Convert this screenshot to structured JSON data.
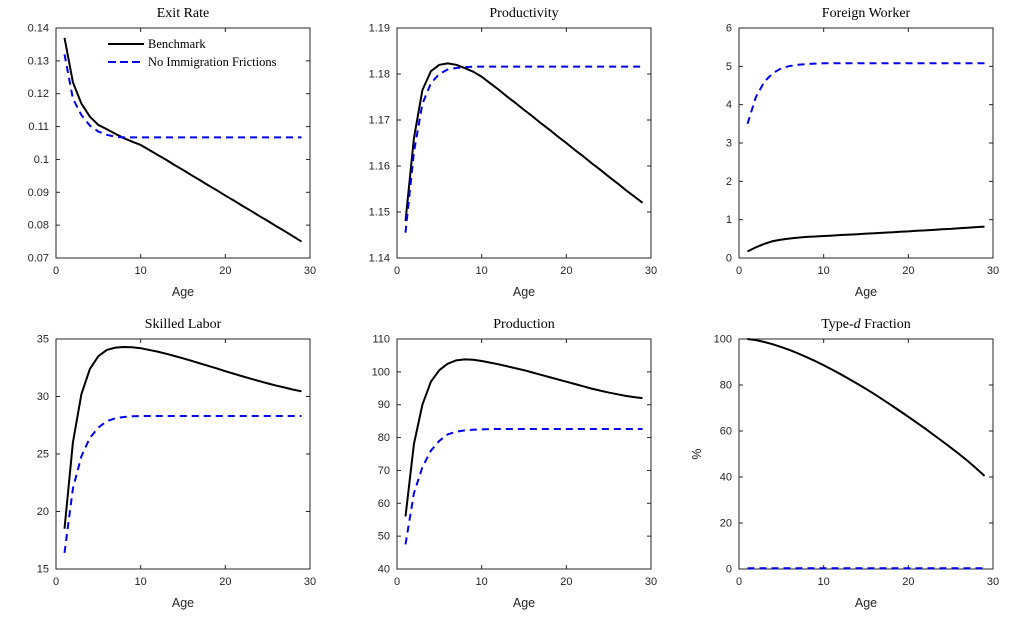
{
  "figure": {
    "background": "#ffffff",
    "axis_color": "#262626",
    "benchmark_color": "#000000",
    "no_frictions_color": "#0000ee"
  },
  "legend": {
    "items": [
      "Benchmark",
      "No Immigration Frictions"
    ]
  },
  "chart_data": [
    {
      "type": "line",
      "title": "Exit Rate",
      "title_segments": [
        {
          "t": "Exit Rate"
        }
      ],
      "xlabel": "Age",
      "ylabel": "",
      "xlim": [
        0,
        30
      ],
      "ylim": [
        0.07,
        0.14
      ],
      "xticks": [
        0,
        10,
        20,
        30
      ],
      "ytick_values": [
        0.07,
        0.08,
        0.09,
        0.1,
        0.11,
        0.12,
        0.13,
        0.14
      ],
      "ytick_labels": [
        "0.07",
        "0.08",
        "0.09",
        "0.1",
        "0.11",
        "0.12",
        "0.13",
        "0.14"
      ],
      "legend": true,
      "grid": false,
      "x": [
        1,
        2,
        3,
        4,
        5,
        6,
        7,
        8,
        9,
        10,
        11,
        12,
        13,
        14,
        15,
        16,
        17,
        18,
        19,
        20,
        21,
        22,
        23,
        24,
        25,
        26,
        27,
        28,
        29
      ],
      "series": [
        {
          "name": "Benchmark",
          "color": "#000000",
          "dashed": false,
          "values": [
            0.137,
            0.1235,
            0.117,
            0.113,
            0.1105,
            0.1092,
            0.1078,
            0.1065,
            0.1054,
            0.1044,
            0.1029,
            0.1014,
            0.0999,
            0.0983,
            0.0968,
            0.0952,
            0.0937,
            0.0921,
            0.0906,
            0.089,
            0.0875,
            0.0859,
            0.0844,
            0.0828,
            0.0813,
            0.0797,
            0.0782,
            0.0766,
            0.075
          ]
        },
        {
          "name": "No Immigration Frictions",
          "color": "#0000ee",
          "dashed": true,
          "values": [
            0.132,
            0.1185,
            0.1135,
            0.1103,
            0.1085,
            0.1075,
            0.1069,
            0.1067,
            0.1067,
            0.1067,
            0.1067,
            0.1067,
            0.1067,
            0.1067,
            0.1067,
            0.1067,
            0.1067,
            0.1067,
            0.1067,
            0.1067,
            0.1067,
            0.1067,
            0.1067,
            0.1067,
            0.1067,
            0.1067,
            0.1067,
            0.1067,
            0.1067
          ]
        }
      ]
    },
    {
      "type": "line",
      "title": "Productivity",
      "title_segments": [
        {
          "t": "Productivity"
        }
      ],
      "xlabel": "Age",
      "ylabel": "",
      "xlim": [
        0,
        30
      ],
      "ylim": [
        1.14,
        1.19
      ],
      "xticks": [
        0,
        10,
        20,
        30
      ],
      "ytick_values": [
        1.14,
        1.15,
        1.16,
        1.17,
        1.18,
        1.19
      ],
      "ytick_labels": [
        "1.14",
        "1.15",
        "1.16",
        "1.17",
        "1.18",
        "1.19"
      ],
      "legend": false,
      "grid": false,
      "x": [
        1,
        2,
        3,
        4,
        5,
        6,
        7,
        8,
        9,
        10,
        11,
        12,
        13,
        14,
        15,
        16,
        17,
        18,
        19,
        20,
        21,
        22,
        23,
        24,
        25,
        26,
        27,
        28,
        29
      ],
      "series": [
        {
          "name": "Benchmark",
          "color": "#000000",
          "dashed": false,
          "values": [
            1.148,
            1.166,
            1.1765,
            1.1806,
            1.182,
            1.1823,
            1.182,
            1.1813,
            1.1805,
            1.1794,
            1.178,
            1.1766,
            1.1751,
            1.1737,
            1.1722,
            1.1708,
            1.1693,
            1.1679,
            1.1664,
            1.165,
            1.1635,
            1.1621,
            1.1606,
            1.1592,
            1.1577,
            1.1563,
            1.1548,
            1.1534,
            1.152
          ]
        },
        {
          "name": "No Immigration Frictions",
          "color": "#0000ee",
          "dashed": true,
          "values": [
            1.1455,
            1.163,
            1.1735,
            1.178,
            1.18,
            1.181,
            1.1813,
            1.1815,
            1.1816,
            1.1816,
            1.1816,
            1.1816,
            1.1816,
            1.1816,
            1.1816,
            1.1816,
            1.1816,
            1.1816,
            1.1816,
            1.1816,
            1.1816,
            1.1816,
            1.1816,
            1.1816,
            1.1816,
            1.1816,
            1.1816,
            1.1816,
            1.1816
          ]
        }
      ]
    },
    {
      "type": "line",
      "title": "Foreign Worker",
      "title_segments": [
        {
          "t": "Foreign Worker"
        }
      ],
      "xlabel": "Age",
      "ylabel": "",
      "xlim": [
        0,
        30
      ],
      "ylim": [
        0,
        6
      ],
      "xticks": [
        0,
        10,
        20,
        30
      ],
      "ytick_values": [
        0,
        1,
        2,
        3,
        4,
        5,
        6
      ],
      "ytick_labels": [
        "0",
        "1",
        "2",
        "3",
        "4",
        "5",
        "6"
      ],
      "legend": false,
      "grid": false,
      "x": [
        1,
        2,
        3,
        4,
        5,
        6,
        7,
        8,
        9,
        10,
        11,
        12,
        13,
        14,
        15,
        16,
        17,
        18,
        19,
        20,
        21,
        22,
        23,
        24,
        25,
        26,
        27,
        28,
        29
      ],
      "series": [
        {
          "name": "Benchmark",
          "color": "#000000",
          "dashed": false,
          "values": [
            0.17,
            0.28,
            0.37,
            0.44,
            0.48,
            0.51,
            0.53,
            0.55,
            0.56,
            0.575,
            0.585,
            0.6,
            0.61,
            0.62,
            0.635,
            0.645,
            0.66,
            0.67,
            0.685,
            0.695,
            0.71,
            0.72,
            0.735,
            0.75,
            0.76,
            0.775,
            0.79,
            0.805,
            0.82
          ]
        },
        {
          "name": "No Immigration Frictions",
          "color": "#0000ee",
          "dashed": true,
          "values": [
            3.5,
            4.2,
            4.6,
            4.82,
            4.95,
            5.01,
            5.04,
            5.06,
            5.07,
            5.08,
            5.08,
            5.08,
            5.08,
            5.08,
            5.08,
            5.08,
            5.08,
            5.08,
            5.08,
            5.08,
            5.08,
            5.08,
            5.08,
            5.08,
            5.08,
            5.08,
            5.08,
            5.08,
            5.08
          ]
        }
      ]
    },
    {
      "type": "line",
      "title": "Skilled Labor",
      "title_segments": [
        {
          "t": "Skilled Labor"
        }
      ],
      "xlabel": "Age",
      "ylabel": "",
      "xlim": [
        0,
        30
      ],
      "ylim": [
        15,
        35
      ],
      "xticks": [
        0,
        10,
        20,
        30
      ],
      "ytick_values": [
        15,
        20,
        25,
        30,
        35
      ],
      "ytick_labels": [
        "15",
        "20",
        "25",
        "30",
        "35"
      ],
      "legend": false,
      "grid": false,
      "x": [
        1,
        2,
        3,
        4,
        5,
        6,
        7,
        8,
        9,
        10,
        11,
        12,
        13,
        14,
        15,
        16,
        17,
        18,
        19,
        20,
        21,
        22,
        23,
        24,
        25,
        26,
        27,
        28,
        29
      ],
      "series": [
        {
          "name": "Benchmark",
          "color": "#000000",
          "dashed": false,
          "values": [
            18.5,
            26,
            30.2,
            32.4,
            33.5,
            34.05,
            34.25,
            34.3,
            34.28,
            34.2,
            34.05,
            33.9,
            33.72,
            33.52,
            33.32,
            33.1,
            32.88,
            32.66,
            32.44,
            32.2,
            31.98,
            31.76,
            31.55,
            31.34,
            31.14,
            30.95,
            30.78,
            30.6,
            30.45
          ]
        },
        {
          "name": "No Immigration Frictions",
          "color": "#0000ee",
          "dashed": true,
          "values": [
            16.4,
            22,
            24.8,
            26.4,
            27.3,
            27.85,
            28.1,
            28.22,
            28.28,
            28.3,
            28.3,
            28.3,
            28.3,
            28.3,
            28.3,
            28.3,
            28.3,
            28.3,
            28.3,
            28.3,
            28.3,
            28.3,
            28.3,
            28.3,
            28.3,
            28.3,
            28.3,
            28.3,
            28.3
          ]
        }
      ]
    },
    {
      "type": "line",
      "title": "Production",
      "title_segments": [
        {
          "t": "Production"
        }
      ],
      "xlabel": "Age",
      "ylabel": "",
      "xlim": [
        0,
        30
      ],
      "ylim": [
        40,
        110
      ],
      "xticks": [
        0,
        10,
        20,
        30
      ],
      "ytick_values": [
        40,
        50,
        60,
        70,
        80,
        90,
        100,
        110
      ],
      "ytick_labels": [
        "40",
        "50",
        "60",
        "70",
        "80",
        "90",
        "100",
        "110"
      ],
      "legend": false,
      "grid": false,
      "x": [
        1,
        2,
        3,
        4,
        5,
        6,
        7,
        8,
        9,
        10,
        11,
        12,
        13,
        14,
        15,
        16,
        17,
        18,
        19,
        20,
        21,
        22,
        23,
        24,
        25,
        26,
        27,
        28,
        29
      ],
      "series": [
        {
          "name": "Benchmark",
          "color": "#000000",
          "dashed": false,
          "values": [
            56,
            78,
            90,
            97,
            100.5,
            102.5,
            103.5,
            103.8,
            103.7,
            103.3,
            102.8,
            102.3,
            101.7,
            101.1,
            100.5,
            99.8,
            99.1,
            98.4,
            97.7,
            97,
            96.3,
            95.6,
            94.9,
            94.3,
            93.7,
            93.2,
            92.7,
            92.3,
            92
          ]
        },
        {
          "name": "No Immigration Frictions",
          "color": "#0000ee",
          "dashed": true,
          "values": [
            47.5,
            63,
            71,
            76,
            79,
            81,
            81.8,
            82.2,
            82.4,
            82.5,
            82.6,
            82.6,
            82.6,
            82.6,
            82.6,
            82.6,
            82.6,
            82.6,
            82.6,
            82.6,
            82.6,
            82.6,
            82.6,
            82.6,
            82.6,
            82.6,
            82.6,
            82.6,
            82.6
          ]
        }
      ]
    },
    {
      "type": "line",
      "title": "Type-d Fraction",
      "title_segments": [
        {
          "t": "Type-"
        },
        {
          "t": "d",
          "italic": true
        },
        {
          "t": " Fraction"
        }
      ],
      "xlabel": "Age",
      "ylabel": "%",
      "xlim": [
        0,
        30
      ],
      "ylim": [
        0,
        100
      ],
      "xticks": [
        0,
        10,
        20,
        30
      ],
      "ytick_values": [
        0,
        20,
        40,
        60,
        80,
        100
      ],
      "ytick_labels": [
        "0",
        "20",
        "40",
        "60",
        "80",
        "100"
      ],
      "legend": false,
      "grid": false,
      "x": [
        1,
        2,
        3,
        4,
        5,
        6,
        7,
        8,
        9,
        10,
        11,
        12,
        13,
        14,
        15,
        16,
        17,
        18,
        19,
        20,
        21,
        22,
        23,
        24,
        25,
        26,
        27,
        28,
        29
      ],
      "series": [
        {
          "name": "Benchmark",
          "color": "#000000",
          "dashed": false,
          "values": [
            100,
            99.5,
            98.7,
            97.7,
            96.5,
            95.2,
            93.7,
            92.1,
            90.4,
            88.6,
            86.7,
            84.7,
            82.6,
            80.5,
            78.3,
            76,
            73.6,
            71.2,
            68.7,
            66.2,
            63.6,
            61,
            58.3,
            55.6,
            52.8,
            50,
            47,
            43.8,
            40.5
          ]
        },
        {
          "name": "No Immigration Frictions",
          "color": "#0000ee",
          "dashed": true,
          "values": [
            0.3,
            0.3,
            0.3,
            0.3,
            0.3,
            0.3,
            0.3,
            0.3,
            0.3,
            0.3,
            0.3,
            0.3,
            0.3,
            0.3,
            0.3,
            0.3,
            0.3,
            0.3,
            0.3,
            0.3,
            0.3,
            0.3,
            0.3,
            0.3,
            0.3,
            0.3,
            0.3,
            0.3,
            0.3
          ]
        }
      ]
    }
  ]
}
